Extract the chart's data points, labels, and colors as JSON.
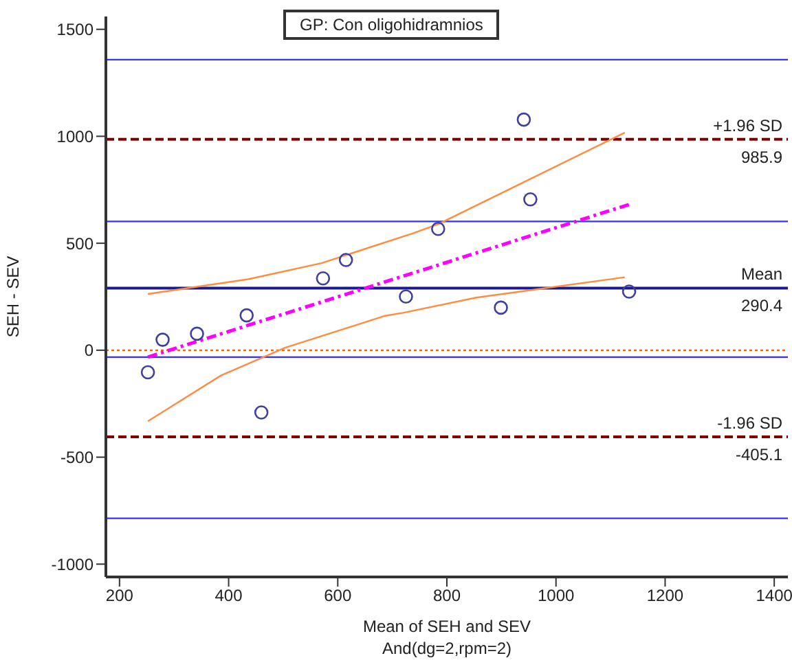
{
  "chart_data": {
    "type": "scatter",
    "title": "GP: Con oligohidramnios",
    "xlabel": "Mean of SEH and SEV",
    "ylabel": "SEH - SEV",
    "annotations": [
      "And(dg=2,rpm=2)"
    ],
    "xlim": [
      175,
      1425
    ],
    "xticks": [
      200,
      400,
      600,
      800,
      1000,
      1200,
      1400
    ],
    "ylim": [
      -1060,
      1560
    ],
    "yticks": [
      -1000,
      -500,
      0,
      500,
      1000,
      1500
    ],
    "marker": "circle",
    "series": [
      {
        "color": "#3f3fa0",
        "x": [
          252,
          279,
          342,
          433,
          460,
          573,
          615,
          725,
          784,
          899,
          941,
          953,
          1134
        ],
        "values": [
          -103,
          49,
          77,
          163,
          -291,
          336,
          422,
          251,
          567,
          199,
          1078,
          705,
          274
        ]
      },
      {
        "type": "line",
        "color": "#ff00ff",
        "line_style": "dashed",
        "marker": "none",
        "x": [
          252,
          1134
        ],
        "values": [
          -32,
          681
        ]
      },
      {
        "type": "line",
        "color": "#ff8c40",
        "line_style": "solid",
        "marker": "none",
        "x": [
          252,
          436,
          570,
          737,
          784,
          938,
          1126
        ],
        "values": [
          263,
          332,
          407,
          546,
          589,
          782,
          1017
        ]
      },
      {
        "type": "line",
        "color": "#ff8c40",
        "line_style": "solid",
        "marker": "none",
        "x": [
          252,
          386,
          503,
          687,
          720,
          854,
          1126
        ],
        "values": [
          -332,
          -118,
          11,
          161,
          175,
          246,
          341
        ]
      }
    ],
    "ref_lines": [
      {
        "axis": "y",
        "value": 1358,
        "color": "#3333ff"
      },
      {
        "axis": "y",
        "value": 985.9,
        "label": "+1.96 SD\n985.9",
        "color": "#800000",
        "line_style": "dashed"
      },
      {
        "axis": "y",
        "value": 602,
        "color": "#3333ff"
      },
      {
        "axis": "y",
        "value": 290.4,
        "label": "Mean\n290.4",
        "color": "#1a1a8c"
      },
      {
        "axis": "y",
        "value": 0,
        "color": "#ff6600",
        "line_style": "dotted"
      },
      {
        "axis": "y",
        "value": -32,
        "color": "#3333ff"
      },
      {
        "axis": "y",
        "value": -405.1,
        "label": "-1.96 SD\n-405.1",
        "color": "#800000",
        "line_style": "dashed"
      },
      {
        "axis": "y",
        "value": -786,
        "color": "#3333ff"
      }
    ]
  }
}
